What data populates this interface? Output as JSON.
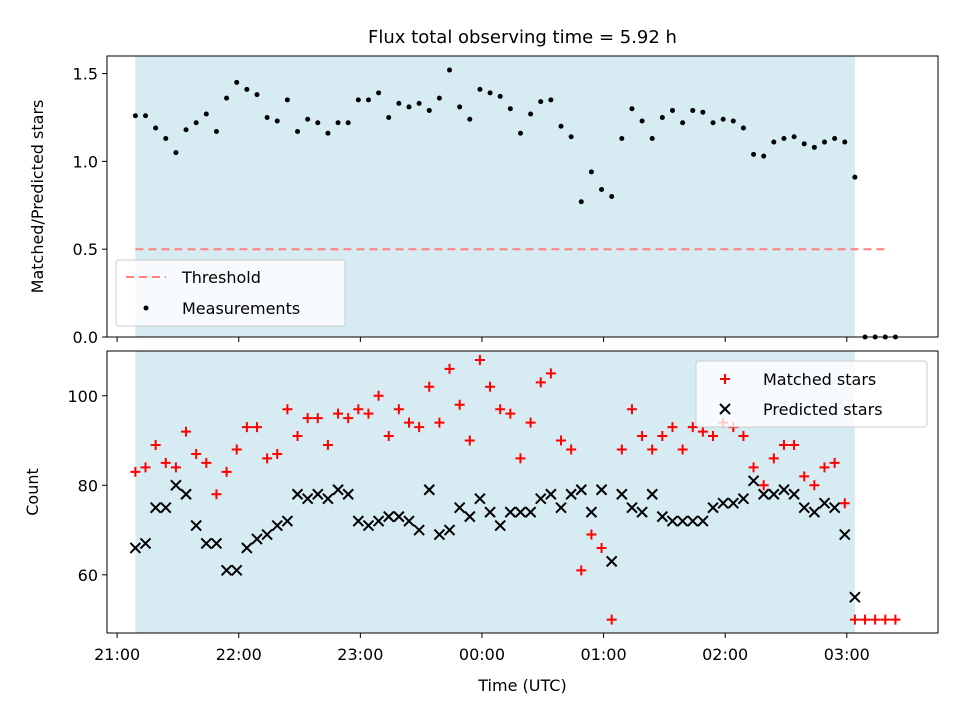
{
  "chart_data": [
    {
      "type": "scatter",
      "title": "Flux total observing time = 5.92 h",
      "ylabel": "Matched/Predicted stars",
      "xlabel": "",
      "ylim": [
        0,
        1.6
      ],
      "yticks": [
        0.0,
        0.5,
        1.0,
        1.5
      ],
      "ytick_labels": [
        "0.0",
        "0.5",
        "1.0",
        "1.5"
      ],
      "shaded_interval": [
        "21:09",
        "03:04"
      ],
      "threshold": {
        "name": "Threshold",
        "y": 0.5,
        "x_range": [
          "21:09",
          "03:20"
        ],
        "color": "#ff8080"
      },
      "legend": {
        "placement": "lower-left",
        "entries": [
          "Threshold",
          "Measurements"
        ]
      },
      "series": [
        {
          "name": "Measurements",
          "color": "#000000",
          "x": [
            "21:09",
            "21:14",
            "21:19",
            "21:24",
            "21:29",
            "21:34",
            "21:39",
            "21:44",
            "21:49",
            "21:54",
            "21:59",
            "22:04",
            "22:09",
            "22:14",
            "22:19",
            "22:24",
            "22:29",
            "22:34",
            "22:39",
            "22:44",
            "22:49",
            "22:54",
            "22:59",
            "23:04",
            "23:09",
            "23:14",
            "23:19",
            "23:24",
            "23:29",
            "23:34",
            "23:39",
            "23:44",
            "23:49",
            "23:54",
            "23:59",
            "00:04",
            "00:09",
            "00:14",
            "00:19",
            "00:24",
            "00:29",
            "00:34",
            "00:39",
            "00:44",
            "00:49",
            "00:54",
            "00:59",
            "01:04",
            "01:09",
            "01:14",
            "01:19",
            "01:24",
            "01:29",
            "01:34",
            "01:39",
            "01:44",
            "01:49",
            "01:54",
            "01:59",
            "02:04",
            "02:09",
            "02:14",
            "02:19",
            "02:24",
            "02:29",
            "02:34",
            "02:39",
            "02:44",
            "02:49",
            "02:54",
            "02:59",
            "03:04",
            "03:09",
            "03:14",
            "03:19",
            "03:24"
          ],
          "y": [
            1.26,
            1.26,
            1.19,
            1.13,
            1.05,
            1.18,
            1.22,
            1.27,
            1.17,
            1.36,
            1.45,
            1.41,
            1.38,
            1.25,
            1.23,
            1.35,
            1.17,
            1.24,
            1.22,
            1.16,
            1.22,
            1.22,
            1.35,
            1.35,
            1.39,
            1.25,
            1.33,
            1.31,
            1.33,
            1.29,
            1.36,
            1.52,
            1.31,
            1.24,
            1.41,
            1.39,
            1.37,
            1.3,
            1.16,
            1.27,
            1.34,
            1.35,
            1.2,
            1.14,
            0.77,
            0.94,
            0.84,
            0.8,
            1.13,
            1.3,
            1.23,
            1.13,
            1.25,
            1.29,
            1.22,
            1.29,
            1.28,
            1.22,
            1.24,
            1.23,
            1.19,
            1.04,
            1.03,
            1.11,
            1.13,
            1.14,
            1.1,
            1.08,
            1.11,
            1.13,
            1.11,
            0.91,
            0.0,
            0.0,
            0.0,
            0.0
          ]
        }
      ]
    },
    {
      "type": "scatter",
      "title": "",
      "xlabel": "Time (UTC)",
      "ylabel": "Count",
      "ylim": [
        47,
        110
      ],
      "yticks": [
        60,
        80,
        100
      ],
      "ytick_labels": [
        "60",
        "80",
        "100"
      ],
      "xlim": [
        "20:55",
        "03:45"
      ],
      "xticks": [
        "21:00",
        "22:00",
        "23:00",
        "00:00",
        "01:00",
        "02:00",
        "03:00"
      ],
      "xtick_labels": [
        "21:00",
        "22:00",
        "23:00",
        "00:00",
        "01:00",
        "02:00",
        "03:00"
      ],
      "shaded_interval": [
        "21:09",
        "03:04"
      ],
      "legend": {
        "placement": "upper-right",
        "entries": [
          "Matched stars",
          "Predicted stars"
        ]
      },
      "series": [
        {
          "name": "Matched stars",
          "color": "#ff0000",
          "marker": "+",
          "x": [
            "21:09",
            "21:14",
            "21:19",
            "21:24",
            "21:29",
            "21:34",
            "21:39",
            "21:44",
            "21:49",
            "21:54",
            "21:59",
            "22:04",
            "22:09",
            "22:14",
            "22:19",
            "22:24",
            "22:29",
            "22:34",
            "22:39",
            "22:44",
            "22:49",
            "22:54",
            "22:59",
            "23:04",
            "23:09",
            "23:14",
            "23:19",
            "23:24",
            "23:29",
            "23:34",
            "23:39",
            "23:44",
            "23:49",
            "23:54",
            "23:59",
            "00:04",
            "00:09",
            "00:14",
            "00:19",
            "00:24",
            "00:29",
            "00:34",
            "00:39",
            "00:44",
            "00:49",
            "00:54",
            "00:59",
            "01:04",
            "01:09",
            "01:14",
            "01:19",
            "01:24",
            "01:29",
            "01:34",
            "01:39",
            "01:44",
            "01:49",
            "01:54",
            "01:59",
            "02:04",
            "02:09",
            "02:14",
            "02:19",
            "02:24",
            "02:29",
            "02:34",
            "02:39",
            "02:44",
            "02:49",
            "02:54",
            "02:59",
            "03:04",
            "03:09",
            "03:14",
            "03:19",
            "03:24"
          ],
          "y": [
            83,
            84,
            89,
            85,
            84,
            92,
            87,
            85,
            78,
            83,
            88,
            93,
            93,
            86,
            87,
            97,
            91,
            95,
            95,
            89,
            96,
            95,
            97,
            96,
            100,
            91,
            97,
            94,
            93,
            102,
            94,
            106,
            98,
            90,
            108,
            102,
            97,
            96,
            86,
            94,
            103,
            105,
            90,
            88,
            61,
            69,
            66,
            50,
            88,
            97,
            91,
            88,
            91,
            93,
            88,
            93,
            92,
            91,
            94,
            93,
            91,
            84,
            80,
            86,
            89,
            89,
            82,
            80,
            84,
            85,
            76,
            50,
            50,
            50,
            50,
            50
          ]
        },
        {
          "name": "Predicted stars",
          "color": "#000000",
          "marker": "x",
          "x": [
            "21:09",
            "21:14",
            "21:19",
            "21:24",
            "21:29",
            "21:34",
            "21:39",
            "21:44",
            "21:49",
            "21:54",
            "21:59",
            "22:04",
            "22:09",
            "22:14",
            "22:19",
            "22:24",
            "22:29",
            "22:34",
            "22:39",
            "22:44",
            "22:49",
            "22:54",
            "22:59",
            "23:04",
            "23:09",
            "23:14",
            "23:19",
            "23:24",
            "23:29",
            "23:34",
            "23:39",
            "23:44",
            "23:49",
            "23:54",
            "23:59",
            "00:04",
            "00:09",
            "00:14",
            "00:19",
            "00:24",
            "00:29",
            "00:34",
            "00:39",
            "00:44",
            "00:49",
            "00:54",
            "00:59",
            "01:04",
            "01:09",
            "01:14",
            "01:19",
            "01:24",
            "01:29",
            "01:34",
            "01:39",
            "01:44",
            "01:49",
            "01:54",
            "01:59",
            "02:04",
            "02:09",
            "02:14",
            "02:19",
            "02:24",
            "02:29",
            "02:34",
            "02:39",
            "02:44",
            "02:49",
            "02:54",
            "02:59",
            "03:04"
          ],
          "y": [
            66,
            67,
            75,
            75,
            80,
            78,
            71,
            67,
            67,
            61,
            61,
            66,
            68,
            69,
            71,
            72,
            78,
            77,
            78,
            77,
            79,
            78,
            72,
            71,
            72,
            73,
            73,
            72,
            70,
            79,
            69,
            70,
            75,
            73,
            77,
            74,
            71,
            74,
            74,
            74,
            77,
            78,
            75,
            78,
            79,
            74,
            79,
            63,
            78,
            75,
            74,
            78,
            73,
            72,
            72,
            72,
            72,
            75,
            76,
            76,
            77,
            81,
            78,
            78,
            79,
            78,
            75,
            74,
            76,
            75,
            69,
            55
          ]
        }
      ]
    }
  ]
}
